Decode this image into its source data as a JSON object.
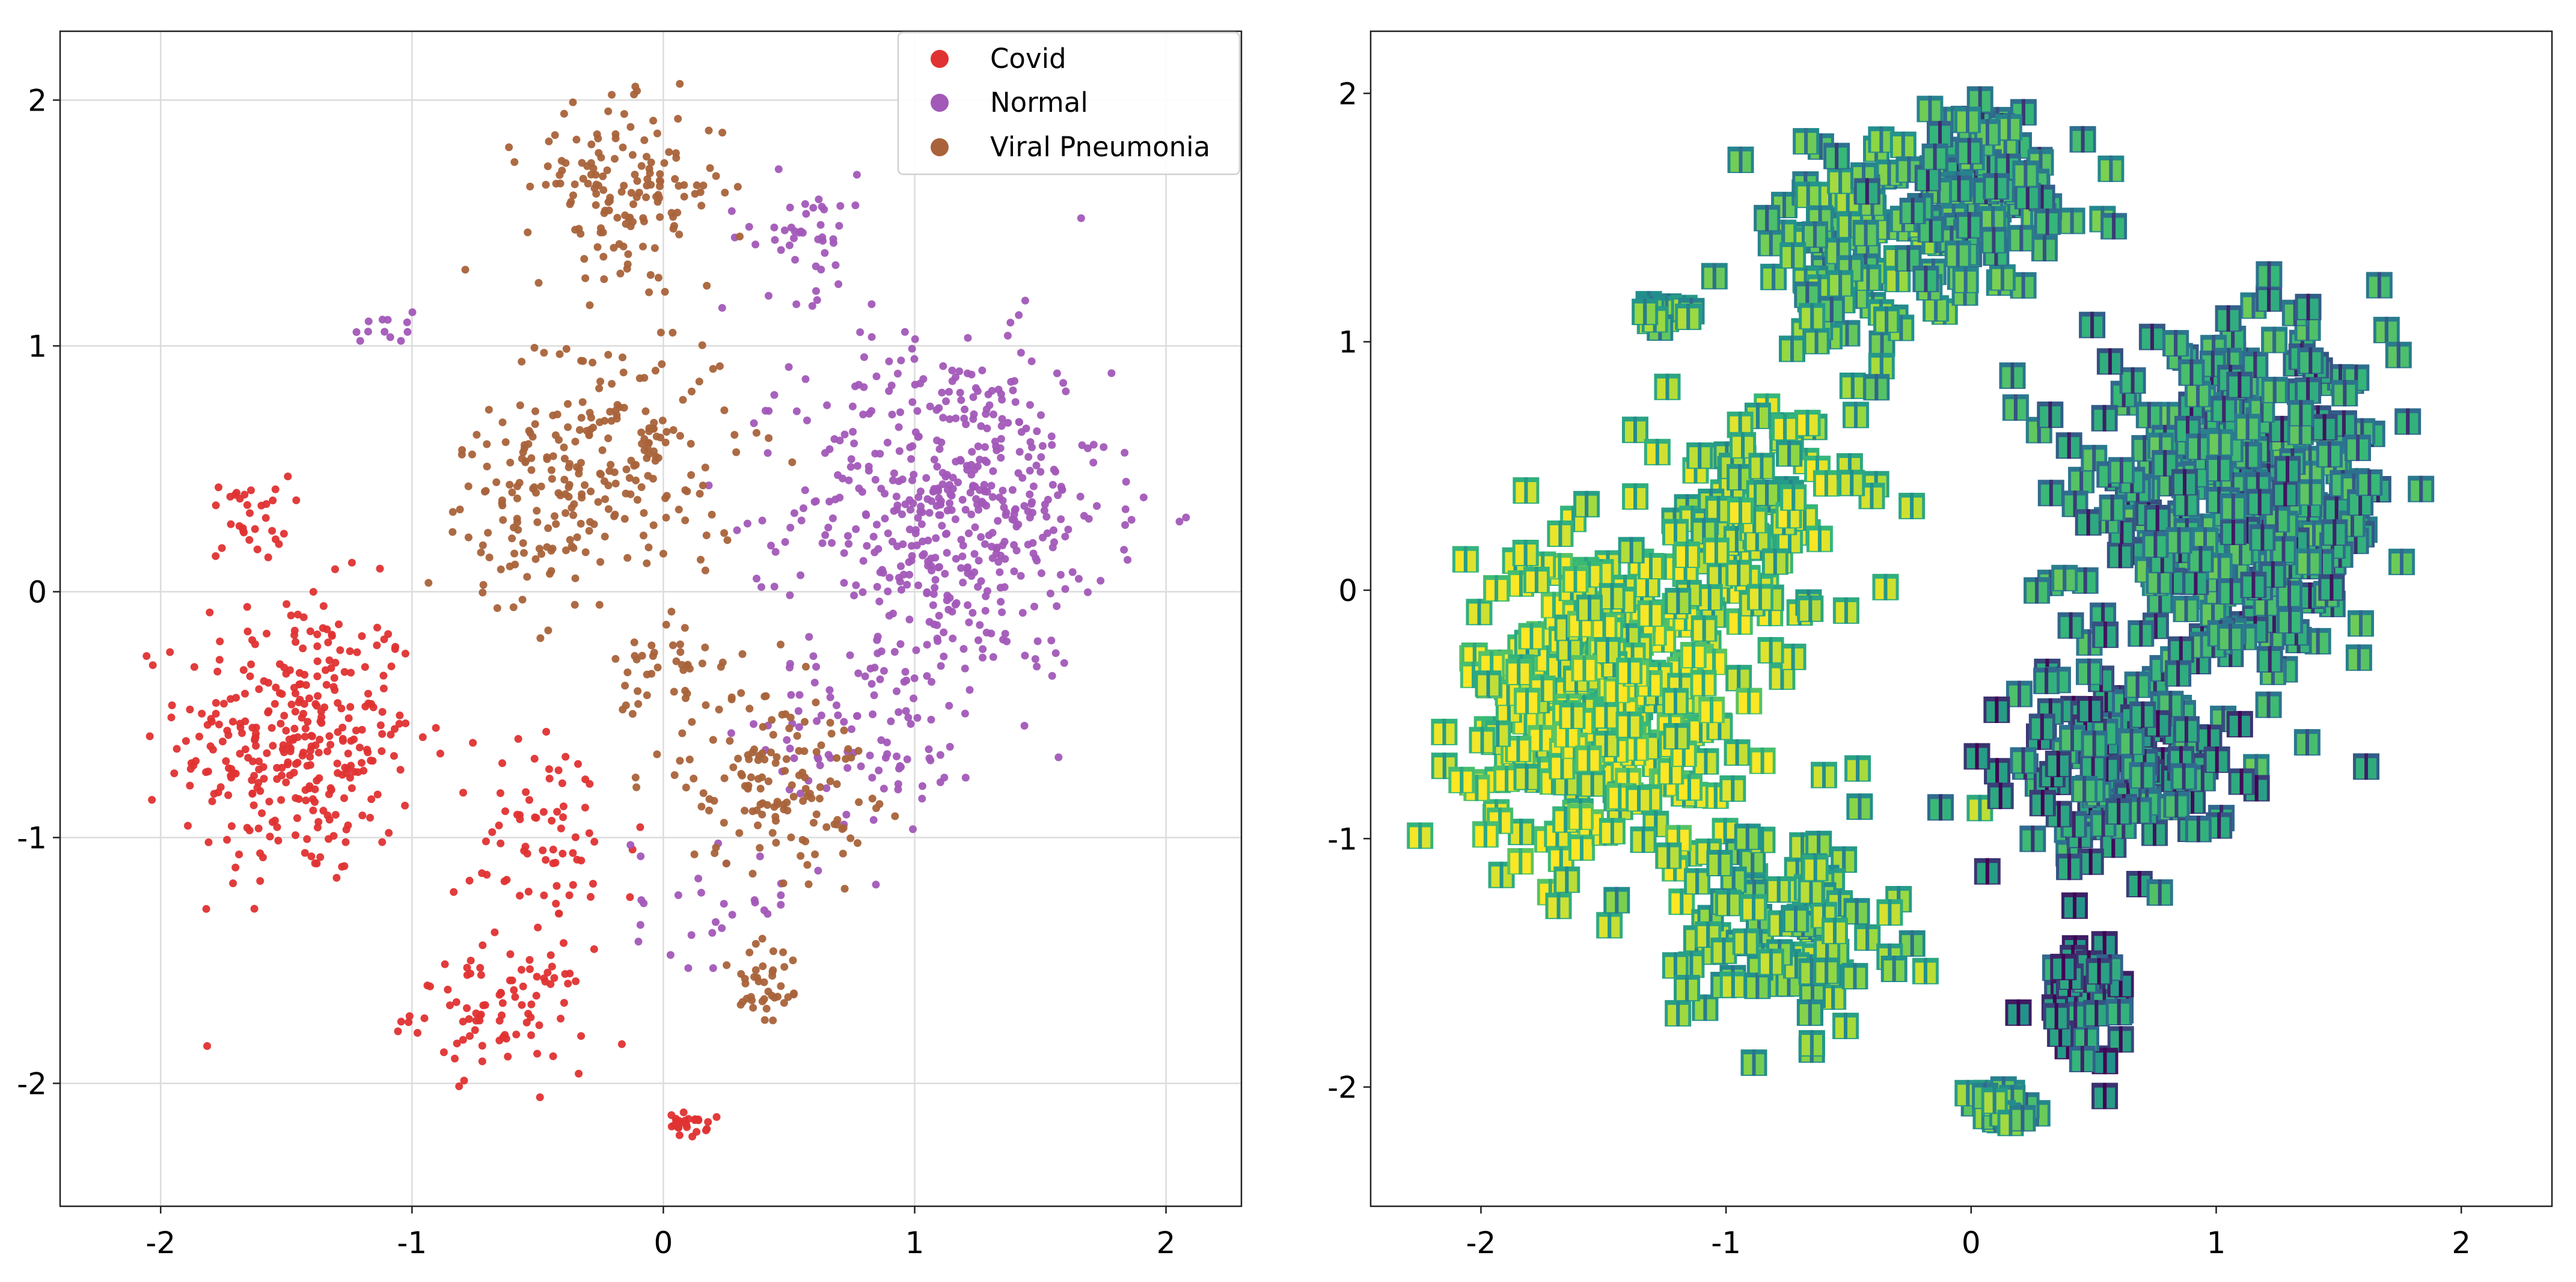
{
  "chart_data": [
    {
      "type": "scatter",
      "title": "",
      "xlabel": "",
      "ylabel": "",
      "xlim": [
        -2.4,
        2.3
      ],
      "ylim": [
        -2.5,
        2.28
      ],
      "xticks": [
        -2,
        -1,
        0,
        1,
        2
      ],
      "yticks": [
        -2,
        -1,
        0,
        1,
        2
      ],
      "grid": true,
      "legend_position": "top-right",
      "series": [
        {
          "name": "Covid",
          "color": "#e03232",
          "clusters": [
            {
              "center": [
                -1.45,
                -0.6
              ],
              "spread": [
                0.38,
                0.48
              ],
              "count": 340
            },
            {
              "center": [
                -1.65,
                0.3
              ],
              "spread": [
                0.13,
                0.14
              ],
              "count": 32
            },
            {
              "center": [
                -0.65,
                -1.7
              ],
              "spread": [
                0.28,
                0.2
              ],
              "count": 90
            },
            {
              "center": [
                -0.45,
                -1.0
              ],
              "spread": [
                0.3,
                0.35
              ],
              "count": 70
            },
            {
              "center": [
                0.1,
                -2.17
              ],
              "spread": [
                0.06,
                0.04
              ],
              "count": 25
            }
          ]
        },
        {
          "name": "Normal",
          "color": "#a259b8",
          "clusters": [
            {
              "center": [
                1.15,
                0.35
              ],
              "spread": [
                0.5,
                0.55
              ],
              "count": 520
            },
            {
              "center": [
                0.85,
                -0.55
              ],
              "spread": [
                0.35,
                0.3
              ],
              "count": 95
            },
            {
              "center": [
                0.55,
                1.45
              ],
              "spread": [
                0.25,
                0.2
              ],
              "count": 45
            },
            {
              "center": [
                -1.12,
                1.07
              ],
              "spread": [
                0.1,
                0.07
              ],
              "count": 12
            },
            {
              "center": [
                0.25,
                -1.25
              ],
              "spread": [
                0.3,
                0.22
              ],
              "count": 30
            }
          ]
        },
        {
          "name": "Viral Pneumonia",
          "color": "#a9633a",
          "clusters": [
            {
              "center": [
                -0.15,
                1.65
              ],
              "spread": [
                0.32,
                0.26
              ],
              "count": 150
            },
            {
              "center": [
                -0.2,
                0.55
              ],
              "spread": [
                0.4,
                0.45
              ],
              "count": 200
            },
            {
              "center": [
                -0.55,
                0.3
              ],
              "spread": [
                0.25,
                0.3
              ],
              "count": 70
            },
            {
              "center": [
                0.45,
                -0.75
              ],
              "spread": [
                0.3,
                0.3
              ],
              "count": 140
            },
            {
              "center": [
                0.4,
                -1.6
              ],
              "spread": [
                0.12,
                0.2
              ],
              "count": 40
            },
            {
              "center": [
                0.0,
                -0.35
              ],
              "spread": [
                0.15,
                0.25
              ],
              "count": 40
            }
          ]
        }
      ]
    },
    {
      "type": "scatter",
      "title": "",
      "xlabel": "",
      "ylabel": "",
      "marker": "x-ray image thumbnails",
      "colormap": [
        "#440154",
        "#31688e",
        "#21918c",
        "#35b779",
        "#90d743",
        "#fde725"
      ],
      "xlim": [
        -2.45,
        2.37
      ],
      "ylim": [
        -2.48,
        2.25
      ],
      "xticks": [
        -2,
        -1,
        0,
        1,
        2
      ],
      "yticks": [
        -2,
        -1,
        0,
        1,
        2
      ],
      "grid": false,
      "clusters": [
        {
          "center": [
            -1.5,
            -0.45
          ],
          "spread": [
            0.45,
            0.5
          ],
          "count": 340,
          "tone": 0.78
        },
        {
          "center": [
            -0.75,
            -1.35
          ],
          "spread": [
            0.35,
            0.35
          ],
          "count": 110,
          "tone": 0.62
        },
        {
          "center": [
            0.1,
            -2.1
          ],
          "spread": [
            0.12,
            0.08
          ],
          "count": 25,
          "tone": 0.55
        },
        {
          "center": [
            -0.9,
            0.3
          ],
          "spread": [
            0.35,
            0.35
          ],
          "count": 120,
          "tone": 0.7
        },
        {
          "center": [
            -0.5,
            1.35
          ],
          "spread": [
            0.35,
            0.35
          ],
          "count": 110,
          "tone": 0.55
        },
        {
          "center": [
            0.05,
            1.6
          ],
          "spread": [
            0.35,
            0.3
          ],
          "count": 120,
          "tone": 0.45
        },
        {
          "center": [
            1.1,
            0.35
          ],
          "spread": [
            0.5,
            0.5
          ],
          "count": 420,
          "tone": 0.42
        },
        {
          "center": [
            0.6,
            -0.7
          ],
          "spread": [
            0.35,
            0.3
          ],
          "count": 150,
          "tone": 0.36
        },
        {
          "center": [
            0.45,
            -1.6
          ],
          "spread": [
            0.15,
            0.2
          ],
          "count": 40,
          "tone": 0.3
        },
        {
          "center": [
            -1.25,
            1.1
          ],
          "spread": [
            0.12,
            0.06
          ],
          "count": 14,
          "tone": 0.6
        }
      ]
    }
  ]
}
